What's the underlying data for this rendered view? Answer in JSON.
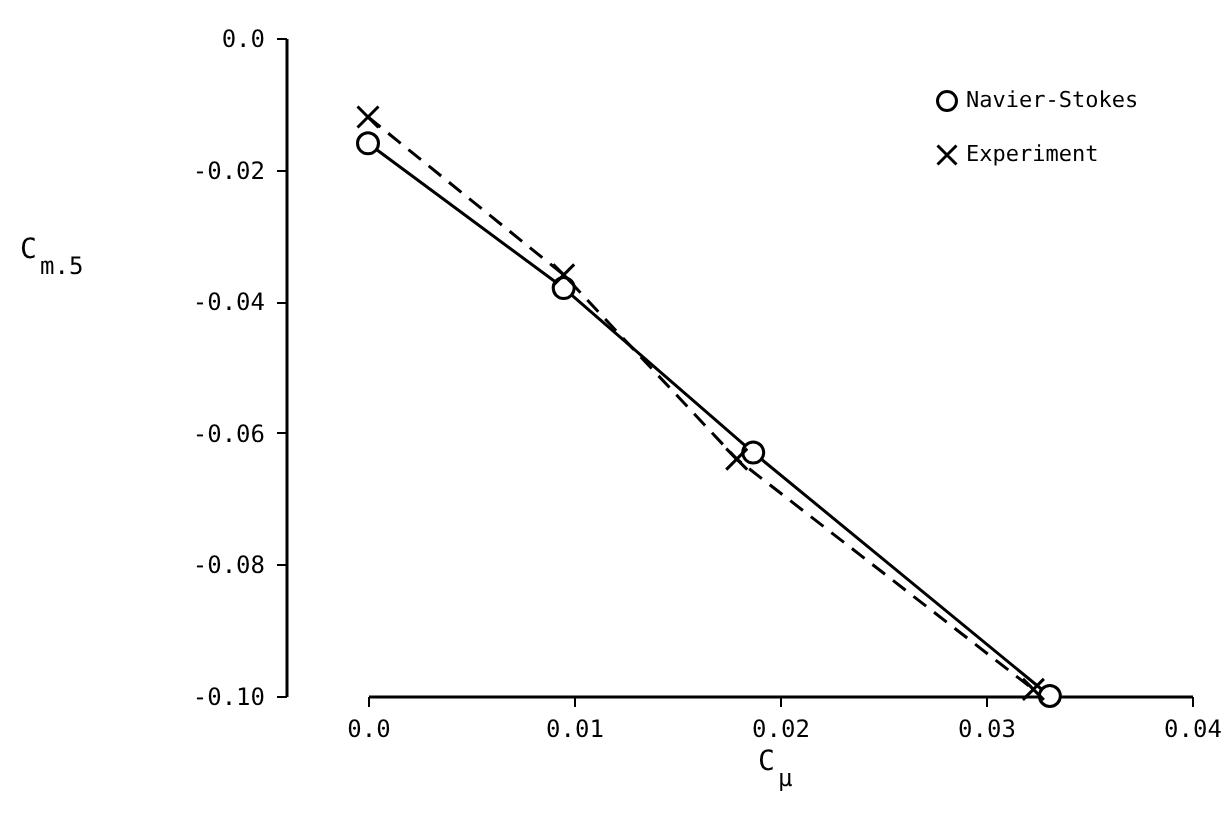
{
  "chart_data": {
    "type": "line",
    "xlabel": "C$_{μ}$",
    "ylabel": "C$_{m.5}$",
    "xlim": [
      0,
      0.04
    ],
    "xticks": [
      {
        "value": 0,
        "label": "0.0"
      },
      0.01,
      0.02,
      0.03,
      0.04
    ],
    "ylim": [
      -0.1,
      0
    ],
    "yticks": [
      {
        "value": -0.1,
        "label": "-0.10"
      },
      {
        "value": -0.08,
        "label": "-0.08"
      },
      {
        "value": -0.06,
        "label": "-0.06"
      },
      {
        "value": -0.04,
        "label": "-0.04"
      },
      {
        "value": -0.02,
        "label": "-0.02"
      },
      {
        "value": 0,
        "label": "0.0"
      }
    ],
    "grid": false,
    "legend": "top right",
    "series": [
      {
        "name": "Navier-Stokes",
        "color": "#000000",
        "marker": "circle",
        "line_style": "solid",
        "x": [
          0,
          0.0095,
          0.0187,
          0.0331
        ],
        "values": [
          -0.016,
          -0.038,
          -0.063,
          -0.1
        ]
      },
      {
        "name": "Experiment",
        "color": "#000000",
        "marker": "cross",
        "line_style": "dashed",
        "x": [
          0,
          0.0095,
          0.0179,
          0.0323
        ],
        "values": [
          -0.012,
          -0.036,
          -0.064,
          -0.099
        ]
      }
    ]
  }
}
